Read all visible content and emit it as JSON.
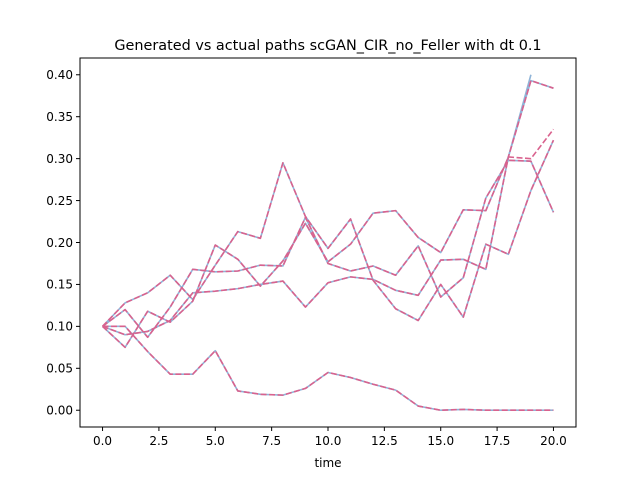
{
  "chart_data": {
    "type": "line",
    "title": "Generated vs actual paths scGAN_CIR_no_Feller with dt 0.1",
    "xlabel": "time",
    "ylabel": "",
    "xlim": [
      -1,
      21
    ],
    "ylim": [
      -0.02,
      0.42
    ],
    "xticks": [
      0.0,
      2.5,
      5.0,
      7.5,
      10.0,
      12.5,
      15.0,
      17.5,
      20.0
    ],
    "xtick_labels": [
      "0.0",
      "2.5",
      "5.0",
      "7.5",
      "10.0",
      "12.5",
      "15.0",
      "17.5",
      "20.0"
    ],
    "yticks": [
      0.0,
      0.05,
      0.1,
      0.15,
      0.2,
      0.25,
      0.3,
      0.35,
      0.4
    ],
    "ytick_labels": [
      "0.00",
      "0.05",
      "0.10",
      "0.15",
      "0.20",
      "0.25",
      "0.30",
      "0.35",
      "0.40"
    ],
    "grid": false,
    "legend": false,
    "colors": {
      "actual": "#8fb4d8",
      "generated": "#d9628e"
    },
    "actual_series": [
      {
        "values": [
          0.1,
          0.075,
          0.118,
          0.105,
          0.13,
          0.197,
          0.18,
          0.148,
          0.178,
          0.223,
          0.177,
          0.198,
          0.235,
          0.238,
          0.206,
          0.188,
          0.239,
          0.238,
          0.302,
          0.4,
          null
        ]
      },
      {
        "values": [
          0.1,
          0.128,
          0.14,
          0.161,
          0.132,
          0.173,
          0.213,
          0.205,
          0.295,
          0.231,
          0.193,
          0.228,
          0.155,
          0.121,
          0.107,
          0.15,
          0.111,
          0.198,
          0.186,
          0.262,
          0.322
        ]
      },
      {
        "values": [
          0.1,
          0.12,
          0.087,
          0.123,
          0.168,
          0.165,
          0.166,
          0.173,
          0.172,
          0.23,
          0.175,
          0.166,
          0.172,
          0.161,
          0.196,
          0.135,
          0.158,
          0.253,
          0.298,
          0.297,
          0.236
        ]
      },
      {
        "values": [
          0.1,
          0.09,
          0.094,
          0.107,
          0.14,
          0.142,
          0.145,
          0.15,
          0.154,
          0.123,
          0.152,
          0.159,
          0.156,
          0.143,
          0.137,
          0.179,
          0.18,
          0.168,
          0.302,
          0.393,
          0.384
        ]
      },
      {
        "values": [
          0.1,
          0.1,
          0.07,
          0.043,
          0.043,
          0.071,
          0.023,
          0.019,
          0.018,
          0.026,
          0.045,
          0.039,
          0.031,
          0.024,
          0.005,
          0.0,
          0.001,
          0.0,
          0.0,
          0.0,
          0.0
        ]
      }
    ],
    "generated_series": [
      {
        "values": [
          0.1,
          0.075,
          0.118,
          0.105,
          0.13,
          0.197,
          0.18,
          0.148,
          0.178,
          0.223,
          0.177,
          0.198,
          0.235,
          0.238,
          0.206,
          0.188,
          0.239,
          0.238,
          0.302,
          0.3,
          0.335
        ]
      },
      {
        "values": [
          0.1,
          0.128,
          0.14,
          0.161,
          0.132,
          0.173,
          0.213,
          0.205,
          0.295,
          0.231,
          0.193,
          0.228,
          0.155,
          0.121,
          0.107,
          0.15,
          0.111,
          0.198,
          0.186,
          0.262,
          0.322
        ]
      },
      {
        "values": [
          0.1,
          0.12,
          0.087,
          0.123,
          0.168,
          0.165,
          0.166,
          0.173,
          0.172,
          0.23,
          0.175,
          0.166,
          0.172,
          0.161,
          0.196,
          0.135,
          0.158,
          0.253,
          0.298,
          0.297,
          0.236
        ]
      },
      {
        "values": [
          0.1,
          0.09,
          0.094,
          0.107,
          0.14,
          0.142,
          0.145,
          0.15,
          0.154,
          0.123,
          0.152,
          0.159,
          0.156,
          0.143,
          0.137,
          0.179,
          0.18,
          0.168,
          0.302,
          0.393,
          0.384
        ]
      },
      {
        "values": [
          0.1,
          0.1,
          0.07,
          0.043,
          0.043,
          0.071,
          0.023,
          0.019,
          0.018,
          0.026,
          0.045,
          0.039,
          0.031,
          0.024,
          0.005,
          0.0,
          0.001,
          0.0,
          0.0,
          0.0,
          0.0
        ]
      }
    ]
  }
}
